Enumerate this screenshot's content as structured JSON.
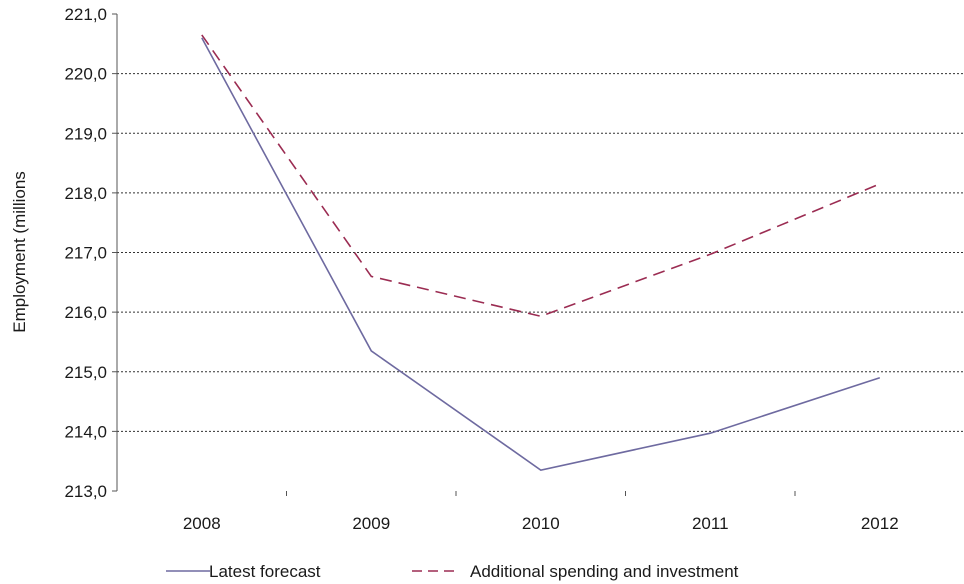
{
  "chart_data": {
    "type": "line",
    "title": "",
    "xlabel": "",
    "ylabel": "Employment (millions",
    "categories": [
      "2008",
      "2009",
      "2010",
      "2011",
      "2012"
    ],
    "ylim": [
      213.0,
      221.0
    ],
    "yticks": [
      "213,0",
      "214,0",
      "215,0",
      "216,0",
      "217,0",
      "218,0",
      "219,0",
      "220,0",
      "221,0"
    ],
    "grid": true,
    "legend_position": "bottom",
    "series": [
      {
        "name": "Latest forecast",
        "values": [
          220.6,
          215.35,
          213.35,
          213.97,
          214.9
        ],
        "color": "#6e6aa0",
        "dash": "solid"
      },
      {
        "name": "Additional spending and investment",
        "values": [
          220.65,
          216.6,
          215.93,
          216.97,
          218.15
        ],
        "color": "#9b2c52",
        "dash": "dashed"
      }
    ]
  }
}
